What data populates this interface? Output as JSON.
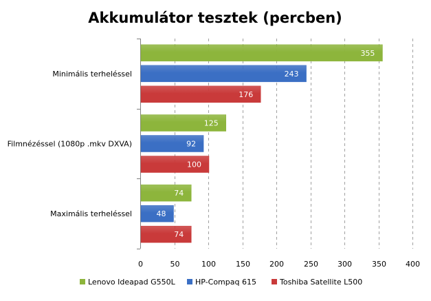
{
  "chart_data": {
    "type": "bar",
    "orientation": "horizontal",
    "title": "Akkumulátor tesztek (percben)",
    "categories": [
      "Minimális terheléssel",
      "Filmnézéssel (1080p .mkv DXVA)",
      "Maximális terheléssel"
    ],
    "series": [
      {
        "name": "Lenovo Ideapad G550L",
        "color": "#8db53c",
        "values": [
          355,
          125,
          74
        ]
      },
      {
        "name": "HP-Compaq 615",
        "color": "#3b6fc4",
        "values": [
          243,
          92,
          48
        ]
      },
      {
        "name": "Toshiba Satellite L500",
        "color": "#c93a3a",
        "values": [
          176,
          100,
          74
        ]
      }
    ],
    "xlim": [
      0,
      400
    ],
    "xticks": [
      "0",
      "50",
      "100",
      "150",
      "200",
      "250",
      "300",
      "350",
      "400"
    ],
    "grid": true,
    "legend": "bottom",
    "data_labels": true
  }
}
